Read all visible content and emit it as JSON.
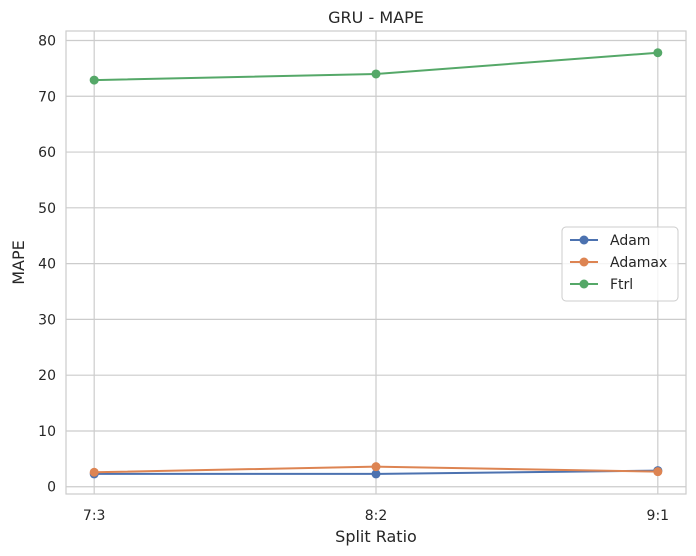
{
  "chart_data": {
    "type": "line",
    "title": "GRU - MAPE",
    "xlabel": "Split Ratio",
    "ylabel": "MAPE",
    "categories": [
      "7:3",
      "8:2",
      "9:1"
    ],
    "y_ticks": [
      "0",
      "10",
      "20",
      "30",
      "40",
      "50",
      "60",
      "70",
      "80"
    ],
    "ylim": [
      -1.3,
      81.7
    ],
    "grid": true,
    "legend_position": "center-right",
    "series": [
      {
        "name": "Adam",
        "color": "#4c72b0",
        "values": [
          2.3,
          2.3,
          2.9
        ]
      },
      {
        "name": "Adamax",
        "color": "#dd8452",
        "values": [
          2.6,
          3.6,
          2.7
        ]
      },
      {
        "name": "Ftrl",
        "color": "#55a868",
        "values": [
          72.9,
          74.0,
          77.8
        ]
      }
    ]
  }
}
